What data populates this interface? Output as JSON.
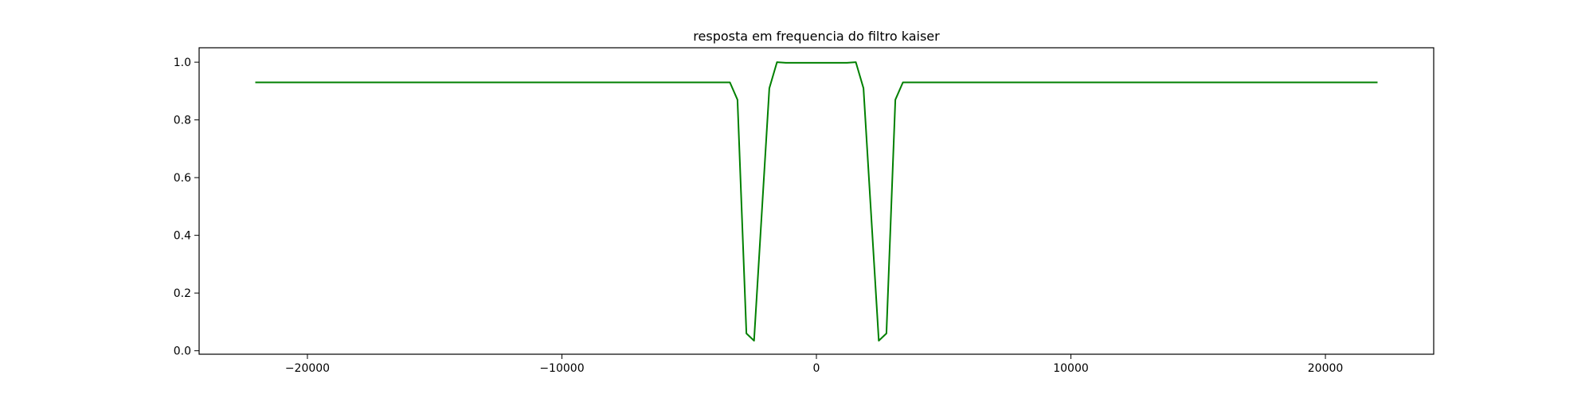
{
  "chart_data": {
    "type": "line",
    "title": "resposta em frequencia do filtro kaiser",
    "xlabel": "",
    "ylabel": "",
    "xlim": [
      -24255,
      24255
    ],
    "ylim": [
      -0.012,
      1.05
    ],
    "x_ticks": [
      -20000,
      -10000,
      0,
      10000,
      20000
    ],
    "x_tick_labels": [
      "−20000",
      "−10000",
      "0",
      "10000",
      "20000"
    ],
    "y_ticks": [
      0.0,
      0.2,
      0.4,
      0.6,
      0.8,
      1.0
    ],
    "y_tick_labels": [
      "0.0",
      "0.2",
      "0.4",
      "0.6",
      "0.8",
      "1.0"
    ],
    "grid": false,
    "series": [
      {
        "color": "#008000",
        "x": [
          -22050,
          -3700,
          -3400,
          -3100,
          -2750,
          -2450,
          -1850,
          -1550,
          -1200,
          -600,
          0,
          600,
          1200,
          1550,
          1850,
          2450,
          2750,
          3100,
          3400,
          3700,
          22050
        ],
        "y": [
          0.93,
          0.93,
          0.93,
          0.87,
          0.06,
          0.035,
          0.91,
          1.0,
          0.998,
          0.998,
          0.998,
          0.998,
          0.998,
          1.0,
          0.91,
          0.035,
          0.06,
          0.87,
          0.93,
          0.93,
          0.93
        ]
      }
    ]
  }
}
